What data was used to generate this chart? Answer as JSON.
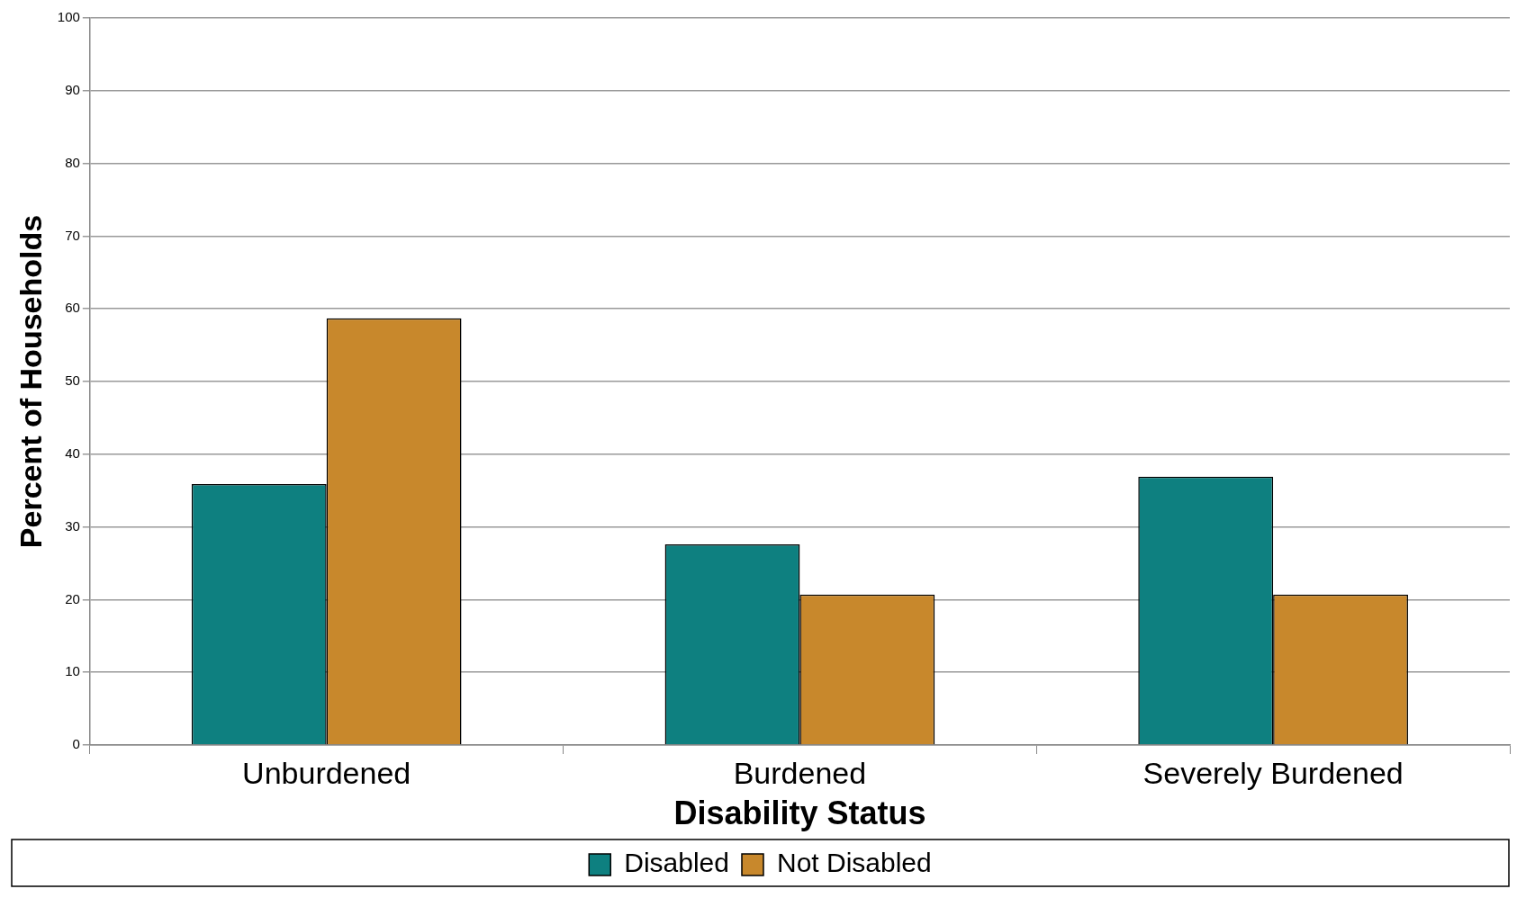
{
  "chart_data": {
    "type": "bar",
    "xlabel": "Disability Status",
    "ylabel": "Percent of Households",
    "categories": [
      "Unburdened",
      "Burdened",
      "Severely Burdened"
    ],
    "series": [
      {
        "name": "Disabled",
        "color": "#0e8080",
        "values": [
          35.9,
          27.6,
          36.9
        ]
      },
      {
        "name": "Not Disabled",
        "color": "#c8882c",
        "values": [
          58.7,
          20.7,
          20.7
        ]
      }
    ],
    "ylim": [
      0,
      100
    ],
    "yticks": [
      0,
      10,
      20,
      30,
      40,
      50,
      60,
      70,
      80,
      90,
      100
    ],
    "grid": "y",
    "legend": "bottom"
  }
}
